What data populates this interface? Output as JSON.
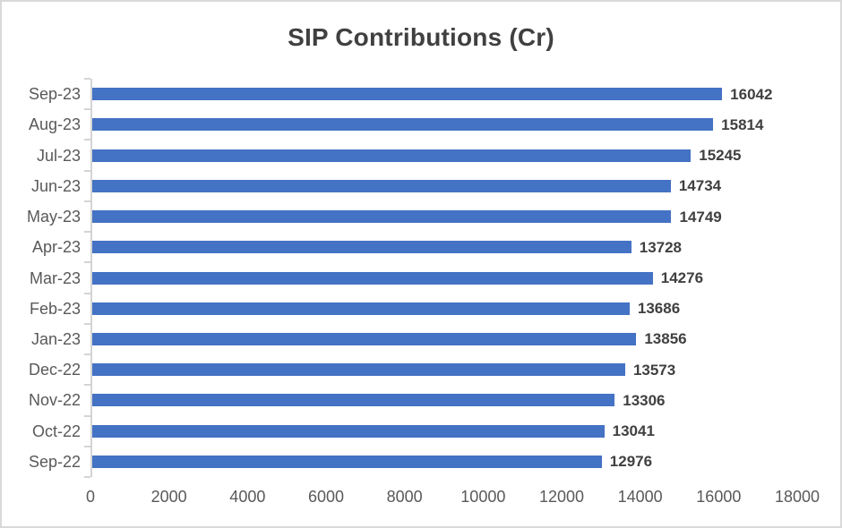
{
  "chart_data": {
    "type": "bar",
    "orientation": "horizontal",
    "title": "SIP Contributions (Cr)",
    "categories": [
      "Sep-23",
      "Aug-23",
      "Jul-23",
      "Jun-23",
      "May-23",
      "Apr-23",
      "Mar-23",
      "Feb-23",
      "Jan-23",
      "Dec-22",
      "Nov-22",
      "Oct-22",
      "Sep-22"
    ],
    "values": [
      16042,
      15814,
      15245,
      14734,
      14749,
      13728,
      14276,
      13686,
      13856,
      13573,
      13306,
      13041,
      12976
    ],
    "xlabel": "",
    "ylabel": "",
    "xlim": [
      0,
      18000
    ],
    "x_ticks": [
      0,
      2000,
      4000,
      6000,
      8000,
      10000,
      12000,
      14000,
      16000,
      18000
    ],
    "grid": false,
    "legend": "none",
    "data_labels": true,
    "colors": {
      "bar": "#4472C4",
      "title_text": "#404040",
      "data_label_text": "#404040",
      "axis_label_text": "#595959",
      "axis_line": "#d4d4d4",
      "frame_border": "#d9d9d9",
      "background": "#ffffff"
    }
  }
}
